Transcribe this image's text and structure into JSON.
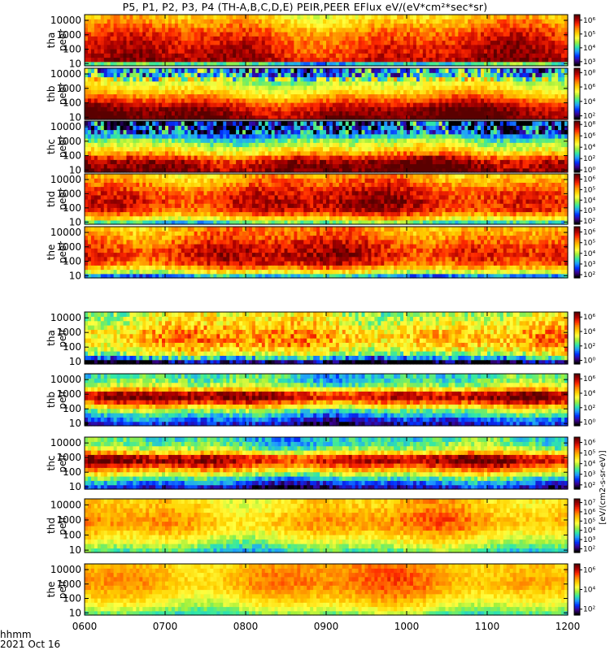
{
  "title": "P5, P1, P2, P3, P4 (TH-A,B,C,D,E) PEIR,PEER EFlux eV/(eV*cm²*sec*sr)",
  "footer": {
    "units_label": "hhmm",
    "date_label": "2021 Oct 16"
  },
  "colorbar_unit_label": "[eV/(cm2-s-sr-eV)]",
  "colors": {
    "scale": [
      "#5a0000",
      "#b00000",
      "#ff2a00",
      "#ff8c00",
      "#ffd200",
      "#ffff40",
      "#9ff03c",
      "#30e8a8",
      "#1f9cff",
      "#0030ff",
      "#3a0090",
      "#000000"
    ]
  },
  "chart_data": {
    "type": "heatmap",
    "x_axis": {
      "ticks": [
        "0600",
        "0700",
        "0800",
        "0900",
        "1000",
        "1100",
        "1200"
      ],
      "range": [
        "06:00",
        "12:00"
      ]
    },
    "y_axis": {
      "scale": "log",
      "ticks": [
        "10",
        "100",
        "1000",
        "10000"
      ],
      "range_eV": [
        7,
        25000
      ]
    },
    "panels": [
      {
        "label": "tha peer",
        "row1": "tha",
        "row2": "peer",
        "cbar_ticks": [
          "10⁶",
          "10⁵",
          "10⁴",
          "10³"
        ],
        "cbar_range_exp": [
          2.7,
          6.4
        ]
      },
      {
        "label": "thb peer",
        "row1": "thb",
        "row2": "peer",
        "cbar_ticks": [
          "10⁸",
          "10⁶",
          "10⁴",
          "10²"
        ],
        "cbar_range_exp": [
          1.5,
          8.6
        ]
      },
      {
        "label": "thc peer",
        "row1": "thc",
        "row2": "peer",
        "cbar_ticks": [
          "10⁸",
          "10⁶",
          "10⁴",
          "10²",
          "10⁰"
        ],
        "cbar_range_exp": [
          -0.4,
          8.6
        ]
      },
      {
        "label": "thd peer",
        "row1": "thd",
        "row2": "peer",
        "cbar_ticks": [
          "10⁶",
          "10⁵",
          "10⁴",
          "10³",
          "10²"
        ],
        "cbar_range_exp": [
          1.7,
          6.5
        ]
      },
      {
        "label": "the peer",
        "row1": "the",
        "row2": "peer",
        "cbar_ticks": [
          "10⁶",
          "10⁵",
          "10⁴",
          "10³",
          "10²"
        ],
        "cbar_range_exp": [
          1.7,
          6.5
        ]
      },
      {
        "label": "tha peir",
        "row1": "tha",
        "row2": "peir",
        "cbar_ticks": [
          "10⁶",
          "10⁴",
          "10²",
          "10⁰"
        ],
        "cbar_range_exp": [
          -0.5,
          6.7
        ]
      },
      {
        "label": "thb peir",
        "row1": "thb",
        "row2": "peir",
        "cbar_ticks": [
          "10⁶",
          "10⁴",
          "10²",
          "10⁰"
        ],
        "cbar_range_exp": [
          -0.5,
          6.7
        ]
      },
      {
        "label": "thc peir",
        "row1": "thc",
        "row2": "peir",
        "cbar_ticks": [
          "10⁶",
          "10⁵",
          "10⁴",
          "10³",
          "10²"
        ],
        "cbar_range_exp": [
          1.6,
          6.5
        ]
      },
      {
        "label": "thd peir",
        "row1": "thd",
        "row2": "peir",
        "cbar_ticks": [
          "10⁷",
          "10⁶",
          "10⁵",
          "10⁴",
          "10³",
          "10²"
        ],
        "cbar_range_exp": [
          1.6,
          7.4
        ]
      },
      {
        "label": "the peir",
        "row1": "the",
        "row2": "peir",
        "cbar_ticks": [
          "10⁶",
          "10⁴",
          "10²"
        ],
        "cbar_range_exp": [
          1.4,
          6.6
        ]
      }
    ]
  }
}
